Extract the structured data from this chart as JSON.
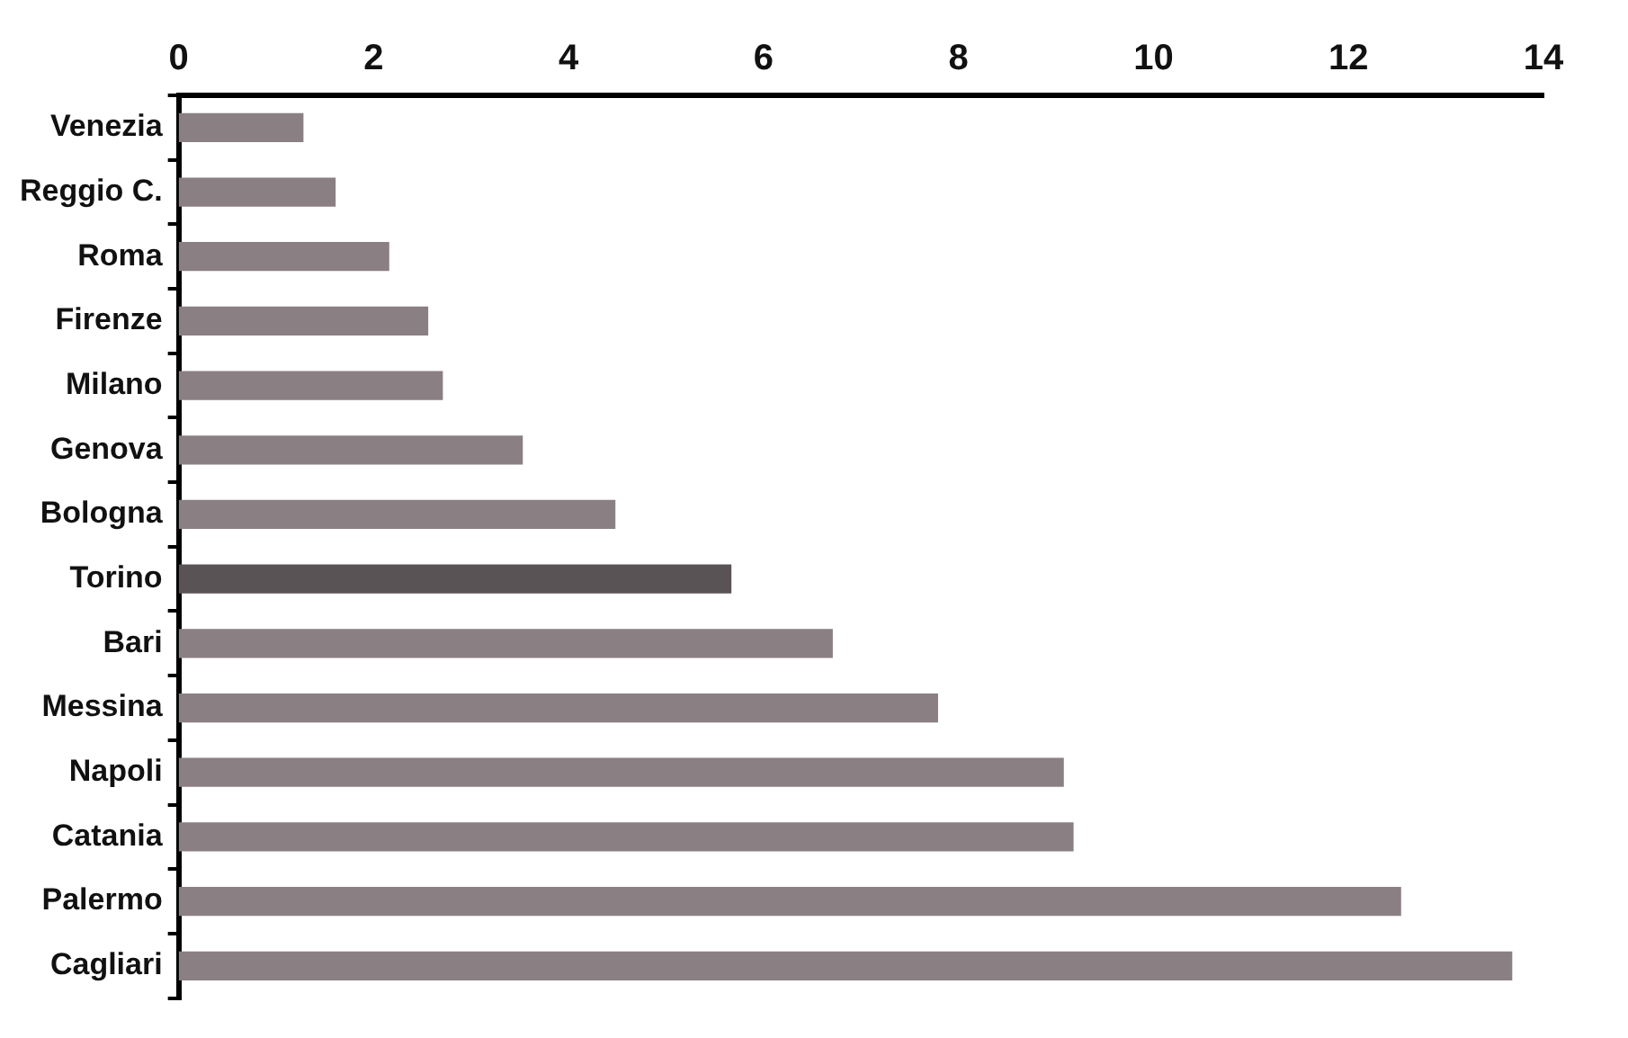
{
  "chart_data": {
    "type": "bar",
    "orientation": "horizontal",
    "categories": [
      "Venezia",
      "Reggio C.",
      "Roma",
      "Firenze",
      "Milano",
      "Genova",
      "Bologna",
      "Torino",
      "Bari",
      "Messina",
      "Napoli",
      "Catania",
      "Palermo",
      "Cagliari"
    ],
    "values": [
      1.28,
      1.61,
      2.16,
      2.56,
      2.71,
      3.53,
      4.48,
      5.67,
      6.71,
      7.79,
      9.08,
      9.18,
      12.54,
      13.68
    ],
    "colors": [
      "#8a7f82",
      "#8a7f82",
      "#8a7f82",
      "#8a7f82",
      "#8a7f82",
      "#8a7f82",
      "#8a7f82",
      "#5a5355",
      "#8a7f82",
      "#8a7f82",
      "#8a7f82",
      "#8a7f82",
      "#8a7f82",
      "#8a7f82"
    ],
    "xlim": [
      0,
      14
    ],
    "xticks": [
      0,
      2,
      4,
      6,
      8,
      10,
      12,
      14
    ],
    "grid": false,
    "legend": false
  }
}
